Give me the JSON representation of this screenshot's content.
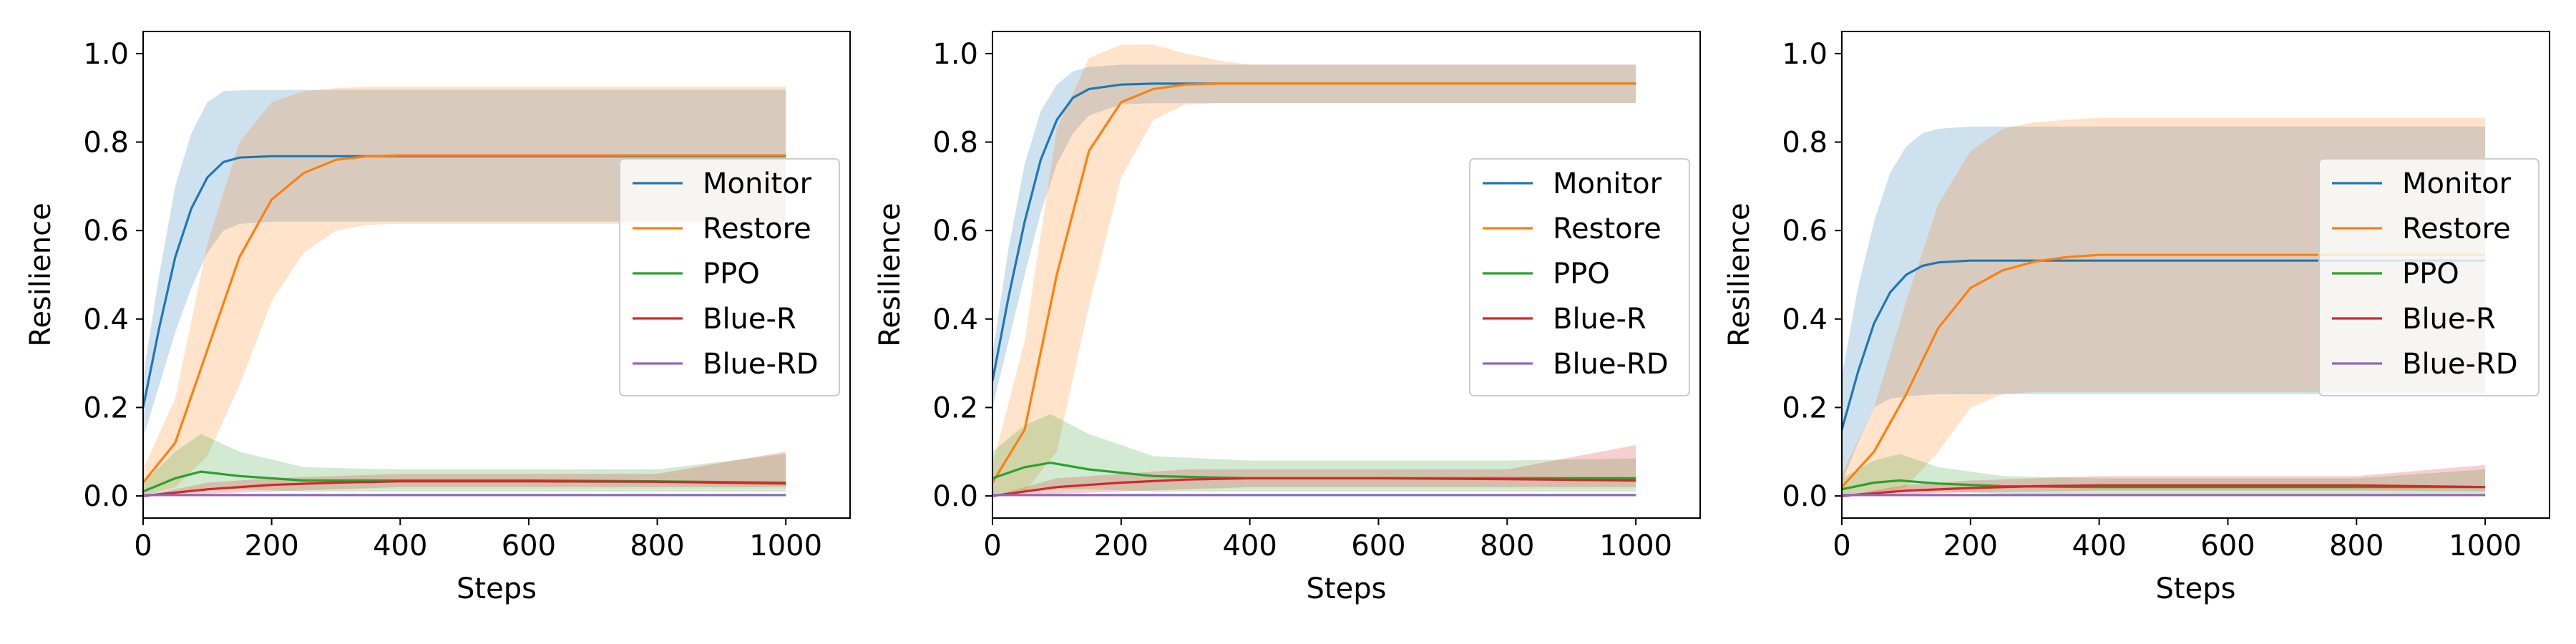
{
  "chart_data": [
    {
      "type": "line",
      "xlabel": "Steps",
      "ylabel": "Resilience",
      "xlim": [
        0,
        1100
      ],
      "ylim": [
        -0.05,
        1.05
      ],
      "xticks": [
        "0",
        "200",
        "400",
        "600",
        "800",
        "1000"
      ],
      "yticks": [
        "0.0",
        "0.2",
        "0.4",
        "0.6",
        "0.8",
        "1.0"
      ],
      "grid": false,
      "legend_position": "center-right",
      "series": [
        {
          "name": "Monitor",
          "color": "#1f77b4",
          "x": [
            0,
            25,
            50,
            75,
            100,
            125,
            150,
            200,
            300,
            500,
            700,
            1000
          ],
          "mean": [
            0.2,
            0.38,
            0.54,
            0.65,
            0.72,
            0.755,
            0.765,
            0.768,
            0.768,
            0.768,
            0.768,
            0.768
          ],
          "lower": [
            0.13,
            0.25,
            0.37,
            0.47,
            0.55,
            0.6,
            0.615,
            0.62,
            0.62,
            0.62,
            0.62,
            0.62
          ],
          "upper": [
            0.27,
            0.5,
            0.7,
            0.82,
            0.89,
            0.915,
            0.917,
            0.918,
            0.918,
            0.918,
            0.918,
            0.918
          ]
        },
        {
          "name": "Restore",
          "color": "#ff7f0e",
          "x": [
            0,
            50,
            100,
            150,
            200,
            250,
            300,
            350,
            400,
            500,
            700,
            1000
          ],
          "mean": [
            0.03,
            0.12,
            0.33,
            0.54,
            0.67,
            0.73,
            0.76,
            0.768,
            0.77,
            0.77,
            0.77,
            0.77
          ],
          "lower": [
            0.0,
            0.02,
            0.09,
            0.25,
            0.44,
            0.55,
            0.6,
            0.613,
            0.615,
            0.615,
            0.615,
            0.615
          ],
          "upper": [
            0.06,
            0.22,
            0.57,
            0.8,
            0.89,
            0.915,
            0.922,
            0.925,
            0.925,
            0.925,
            0.925,
            0.925
          ]
        },
        {
          "name": "PPO",
          "color": "#2ca02c",
          "x": [
            0,
            50,
            90,
            150,
            250,
            400,
            600,
            800,
            1000
          ],
          "mean": [
            0.01,
            0.04,
            0.055,
            0.045,
            0.035,
            0.035,
            0.035,
            0.033,
            0.03
          ],
          "lower": [
            0.0,
            0.01,
            0.015,
            0.015,
            0.01,
            0.01,
            0.01,
            0.01,
            0.01
          ],
          "upper": [
            0.03,
            0.1,
            0.14,
            0.1,
            0.065,
            0.06,
            0.06,
            0.06,
            0.095
          ]
        },
        {
          "name": "Blue-R",
          "color": "#d62728",
          "x": [
            0,
            100,
            200,
            300,
            400,
            600,
            800,
            1000
          ],
          "mean": [
            0.0,
            0.015,
            0.025,
            0.03,
            0.033,
            0.033,
            0.032,
            0.028
          ],
          "lower": [
            0.0,
            0.005,
            0.01,
            0.015,
            0.02,
            0.02,
            0.02,
            0.02
          ],
          "upper": [
            0.0,
            0.03,
            0.04,
            0.045,
            0.05,
            0.05,
            0.05,
            0.1
          ]
        },
        {
          "name": "Blue-RD",
          "color": "#9467bd",
          "x": [
            0,
            1000
          ],
          "mean": [
            0.002,
            0.002
          ],
          "lower": [
            0.0,
            0.0
          ],
          "upper": [
            0.005,
            0.005
          ]
        }
      ]
    },
    {
      "type": "line",
      "xlabel": "Steps",
      "ylabel": "Resilience",
      "xlim": [
        0,
        1100
      ],
      "ylim": [
        -0.05,
        1.05
      ],
      "xticks": [
        "0",
        "200",
        "400",
        "600",
        "800",
        "1000"
      ],
      "yticks": [
        "0.0",
        "0.2",
        "0.4",
        "0.6",
        "0.8",
        "1.0"
      ],
      "grid": false,
      "legend_position": "center-right",
      "series": [
        {
          "name": "Monitor",
          "color": "#1f77b4",
          "x": [
            0,
            25,
            50,
            75,
            100,
            125,
            150,
            200,
            250,
            300,
            500,
            1000
          ],
          "mean": [
            0.26,
            0.45,
            0.62,
            0.76,
            0.85,
            0.9,
            0.92,
            0.93,
            0.932,
            0.932,
            0.932,
            0.932
          ],
          "lower": [
            0.2,
            0.35,
            0.5,
            0.64,
            0.75,
            0.82,
            0.86,
            0.885,
            0.888,
            0.888,
            0.888,
            0.888
          ],
          "upper": [
            0.32,
            0.56,
            0.75,
            0.87,
            0.93,
            0.96,
            0.97,
            0.975,
            0.975,
            0.975,
            0.975,
            0.975
          ]
        },
        {
          "name": "Restore",
          "color": "#ff7f0e",
          "x": [
            0,
            50,
            100,
            150,
            200,
            250,
            300,
            350,
            400,
            500,
            1000
          ],
          "mean": [
            0.03,
            0.15,
            0.5,
            0.78,
            0.89,
            0.92,
            0.93,
            0.932,
            0.932,
            0.932,
            0.932
          ],
          "lower": [
            0.0,
            0.01,
            0.1,
            0.43,
            0.72,
            0.85,
            0.885,
            0.888,
            0.888,
            0.888,
            0.888
          ],
          "upper": [
            0.07,
            0.35,
            0.83,
            0.99,
            1.02,
            1.02,
            1.0,
            0.985,
            0.975,
            0.975,
            0.975
          ]
        },
        {
          "name": "PPO",
          "color": "#2ca02c",
          "x": [
            0,
            50,
            90,
            150,
            250,
            400,
            600,
            800,
            1000
          ],
          "mean": [
            0.04,
            0.065,
            0.075,
            0.06,
            0.045,
            0.04,
            0.04,
            0.04,
            0.04
          ],
          "lower": [
            0.0,
            0.01,
            0.015,
            0.015,
            0.01,
            0.01,
            0.01,
            0.01,
            0.01
          ],
          "upper": [
            0.1,
            0.16,
            0.185,
            0.14,
            0.09,
            0.08,
            0.08,
            0.08,
            0.085
          ]
        },
        {
          "name": "Blue-R",
          "color": "#d62728",
          "x": [
            0,
            100,
            200,
            300,
            400,
            600,
            800,
            1000
          ],
          "mean": [
            0.0,
            0.02,
            0.03,
            0.037,
            0.04,
            0.04,
            0.038,
            0.035
          ],
          "lower": [
            0.0,
            0.005,
            0.01,
            0.015,
            0.02,
            0.02,
            0.02,
            0.02
          ],
          "upper": [
            0.0,
            0.04,
            0.05,
            0.06,
            0.06,
            0.06,
            0.06,
            0.115
          ]
        },
        {
          "name": "Blue-RD",
          "color": "#9467bd",
          "x": [
            0,
            1000
          ],
          "mean": [
            0.002,
            0.002
          ],
          "lower": [
            0.0,
            0.0
          ],
          "upper": [
            0.005,
            0.005
          ]
        }
      ]
    },
    {
      "type": "line",
      "xlabel": "Steps",
      "ylabel": "Resilience",
      "xlim": [
        0,
        1100
      ],
      "ylim": [
        -0.05,
        1.05
      ],
      "xticks": [
        "0",
        "200",
        "400",
        "600",
        "800",
        "1000"
      ],
      "yticks": [
        "0.0",
        "0.2",
        "0.4",
        "0.6",
        "0.8",
        "1.0"
      ],
      "grid": false,
      "legend_position": "center-right",
      "series": [
        {
          "name": "Monitor",
          "color": "#1f77b4",
          "x": [
            0,
            25,
            50,
            75,
            100,
            125,
            150,
            200,
            250,
            300,
            500,
            1000
          ],
          "mean": [
            0.15,
            0.28,
            0.39,
            0.46,
            0.5,
            0.52,
            0.528,
            0.532,
            0.532,
            0.532,
            0.532,
            0.532
          ],
          "lower": [
            0.03,
            0.12,
            0.2,
            0.22,
            0.225,
            0.228,
            0.23,
            0.23,
            0.23,
            0.23,
            0.23,
            0.23
          ],
          "upper": [
            0.27,
            0.47,
            0.62,
            0.73,
            0.79,
            0.82,
            0.83,
            0.835,
            0.835,
            0.835,
            0.835,
            0.835
          ]
        },
        {
          "name": "Restore",
          "color": "#ff7f0e",
          "x": [
            0,
            50,
            100,
            150,
            200,
            250,
            300,
            350,
            400,
            500,
            1000
          ],
          "mean": [
            0.02,
            0.1,
            0.23,
            0.38,
            0.47,
            0.51,
            0.53,
            0.54,
            0.545,
            0.545,
            0.545
          ],
          "lower": [
            0.0,
            0.0,
            0.02,
            0.1,
            0.2,
            0.23,
            0.235,
            0.235,
            0.235,
            0.235,
            0.235
          ],
          "upper": [
            0.05,
            0.2,
            0.44,
            0.66,
            0.78,
            0.83,
            0.845,
            0.85,
            0.855,
            0.855,
            0.855
          ]
        },
        {
          "name": "PPO",
          "color": "#2ca02c",
          "x": [
            0,
            50,
            90,
            150,
            250,
            400,
            600,
            800,
            1000
          ],
          "mean": [
            0.015,
            0.03,
            0.035,
            0.028,
            0.022,
            0.02,
            0.02,
            0.02,
            0.02
          ],
          "lower": [
            0.0,
            0.005,
            0.01,
            0.01,
            0.005,
            0.005,
            0.005,
            0.005,
            0.005
          ],
          "upper": [
            0.04,
            0.08,
            0.095,
            0.065,
            0.045,
            0.04,
            0.04,
            0.04,
            0.06
          ]
        },
        {
          "name": "Blue-R",
          "color": "#d62728",
          "x": [
            0,
            100,
            200,
            300,
            400,
            600,
            800,
            1000
          ],
          "mean": [
            0.0,
            0.012,
            0.018,
            0.022,
            0.024,
            0.024,
            0.024,
            0.02
          ],
          "lower": [
            0.0,
            0.004,
            0.008,
            0.01,
            0.012,
            0.012,
            0.012,
            0.01
          ],
          "upper": [
            0.0,
            0.025,
            0.035,
            0.04,
            0.045,
            0.045,
            0.045,
            0.07
          ]
        },
        {
          "name": "Blue-RD",
          "color": "#9467bd",
          "x": [
            0,
            1000
          ],
          "mean": [
            0.002,
            0.002
          ],
          "lower": [
            0.0,
            0.0
          ],
          "upper": [
            0.005,
            0.005
          ]
        }
      ]
    }
  ]
}
